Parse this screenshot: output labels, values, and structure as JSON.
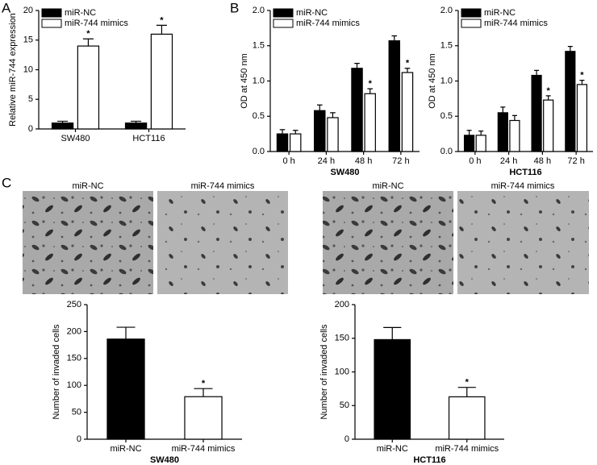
{
  "panel_labels": [
    "A",
    "B",
    "C"
  ],
  "image_labels": [
    "miR-NC",
    "miR-744 mimics",
    "miR-NC",
    "miR-744 mimics"
  ],
  "chart_data": [
    {
      "type": "bar",
      "ylabel": "Relative miR-744 expression",
      "categories": [
        "SW480",
        "HCT116"
      ],
      "series": [
        {
          "name": "miR-NC",
          "color": "#000000",
          "values": [
            1,
            1
          ],
          "errors": [
            0.3,
            0.3
          ],
          "significance": [
            null,
            null
          ]
        },
        {
          "name": "miR-744 mimics",
          "color": "#ffffff",
          "values": [
            14,
            16
          ],
          "errors": [
            1.2,
            1.5
          ],
          "significance": [
            "*",
            "*"
          ]
        }
      ],
      "ylim": [
        0,
        20
      ],
      "yticks": [
        0,
        5,
        10,
        15,
        20
      ],
      "legend": "upper left"
    },
    {
      "type": "bar",
      "ylabel": "OD at 450 nm",
      "xlabel": "SW480",
      "categories": [
        "0 h",
        "24 h",
        "48 h",
        "72 h"
      ],
      "series": [
        {
          "name": "miR-NC",
          "color": "#000000",
          "values": [
            0.25,
            0.58,
            1.18,
            1.57
          ],
          "errors": [
            0.06,
            0.08,
            0.07,
            0.07
          ],
          "significance": [
            null,
            null,
            null,
            null
          ]
        },
        {
          "name": "miR-744 mimics",
          "color": "#ffffff",
          "values": [
            0.25,
            0.48,
            0.82,
            1.12
          ],
          "errors": [
            0.05,
            0.07,
            0.07,
            0.06
          ],
          "significance": [
            null,
            null,
            "*",
            "*"
          ]
        }
      ],
      "ylim": [
        0,
        2
      ],
      "yticks": [
        {
          "value": 0,
          "label": "0.0"
        },
        0.5,
        {
          "value": 1,
          "label": "1.0"
        },
        1.5,
        {
          "value": 2,
          "label": "2.0"
        }
      ],
      "legend": "upper left"
    },
    {
      "type": "bar",
      "ylabel": "OD at 450 nm",
      "xlabel": "HCT116",
      "categories": [
        "0 h",
        "24 h",
        "48 h",
        "72 h"
      ],
      "series": [
        {
          "name": "miR-NC",
          "color": "#000000",
          "values": [
            0.23,
            0.55,
            1.08,
            1.42
          ],
          "errors": [
            0.07,
            0.08,
            0.07,
            0.07
          ],
          "significance": [
            null,
            null,
            null,
            null
          ]
        },
        {
          "name": "miR-744 mimics",
          "color": "#ffffff",
          "values": [
            0.23,
            0.44,
            0.73,
            0.95
          ],
          "errors": [
            0.06,
            0.07,
            0.06,
            0.06
          ],
          "significance": [
            null,
            null,
            "*",
            "*"
          ]
        }
      ],
      "ylim": [
        0,
        2
      ],
      "yticks": [
        {
          "value": 0,
          "label": "0.0"
        },
        0.5,
        {
          "value": 1,
          "label": "1.0"
        },
        1.5,
        {
          "value": 2,
          "label": "2.0"
        }
      ],
      "legend": "upper left"
    },
    {
      "type": "bar",
      "ylabel": "Number of invaded cells",
      "xlabel": "SW480",
      "categories": [
        "miR-NC",
        "miR-744 mimics"
      ],
      "values": [
        186,
        79
      ],
      "errors": [
        22,
        15
      ],
      "colors": [
        "#000000",
        "#ffffff"
      ],
      "significance": [
        null,
        "*"
      ],
      "ylim": [
        0,
        250
      ],
      "yticks": [
        0,
        50,
        100,
        150,
        200,
        250
      ]
    },
    {
      "type": "bar",
      "ylabel": "Number of invaded cells",
      "xlabel": "HCT116",
      "categories": [
        "miR-NC",
        "miR-744 mimics"
      ],
      "values": [
        148,
        63
      ],
      "errors": [
        18,
        14
      ],
      "colors": [
        "#000000",
        "#ffffff"
      ],
      "significance": [
        null,
        "*"
      ],
      "ylim": [
        0,
        200
      ],
      "yticks": [
        0,
        50,
        100,
        150,
        200
      ]
    }
  ]
}
